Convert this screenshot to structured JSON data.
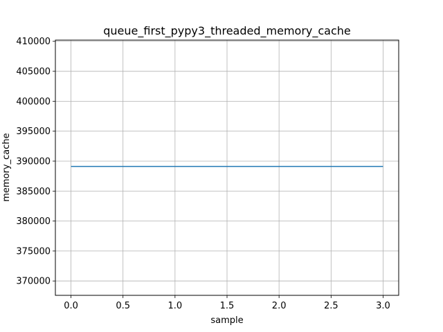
{
  "chart_data": {
    "type": "line",
    "title": "queue_first_pypy3_threaded_memory_cache",
    "xlabel": "sample",
    "ylabel": "memory_cache",
    "xlim": [
      -0.15,
      3.15
    ],
    "ylim": [
      367600,
      410200
    ],
    "xticks": [
      0.0,
      0.5,
      1.0,
      1.5,
      2.0,
      2.5,
      3.0
    ],
    "xtick_labels": [
      "0.0",
      "0.5",
      "1.0",
      "1.5",
      "2.0",
      "2.5",
      "3.0"
    ],
    "yticks": [
      370000,
      375000,
      380000,
      385000,
      390000,
      395000,
      400000,
      405000,
      410000
    ],
    "ytick_labels": [
      "370000",
      "375000",
      "380000",
      "385000",
      "390000",
      "395000",
      "400000",
      "405000",
      "410000"
    ],
    "grid": true,
    "series": [
      {
        "x": [
          0,
          1,
          2,
          3
        ],
        "y": [
          389120,
          389120,
          389120,
          389120
        ],
        "color": "#1f77b4"
      }
    ]
  }
}
